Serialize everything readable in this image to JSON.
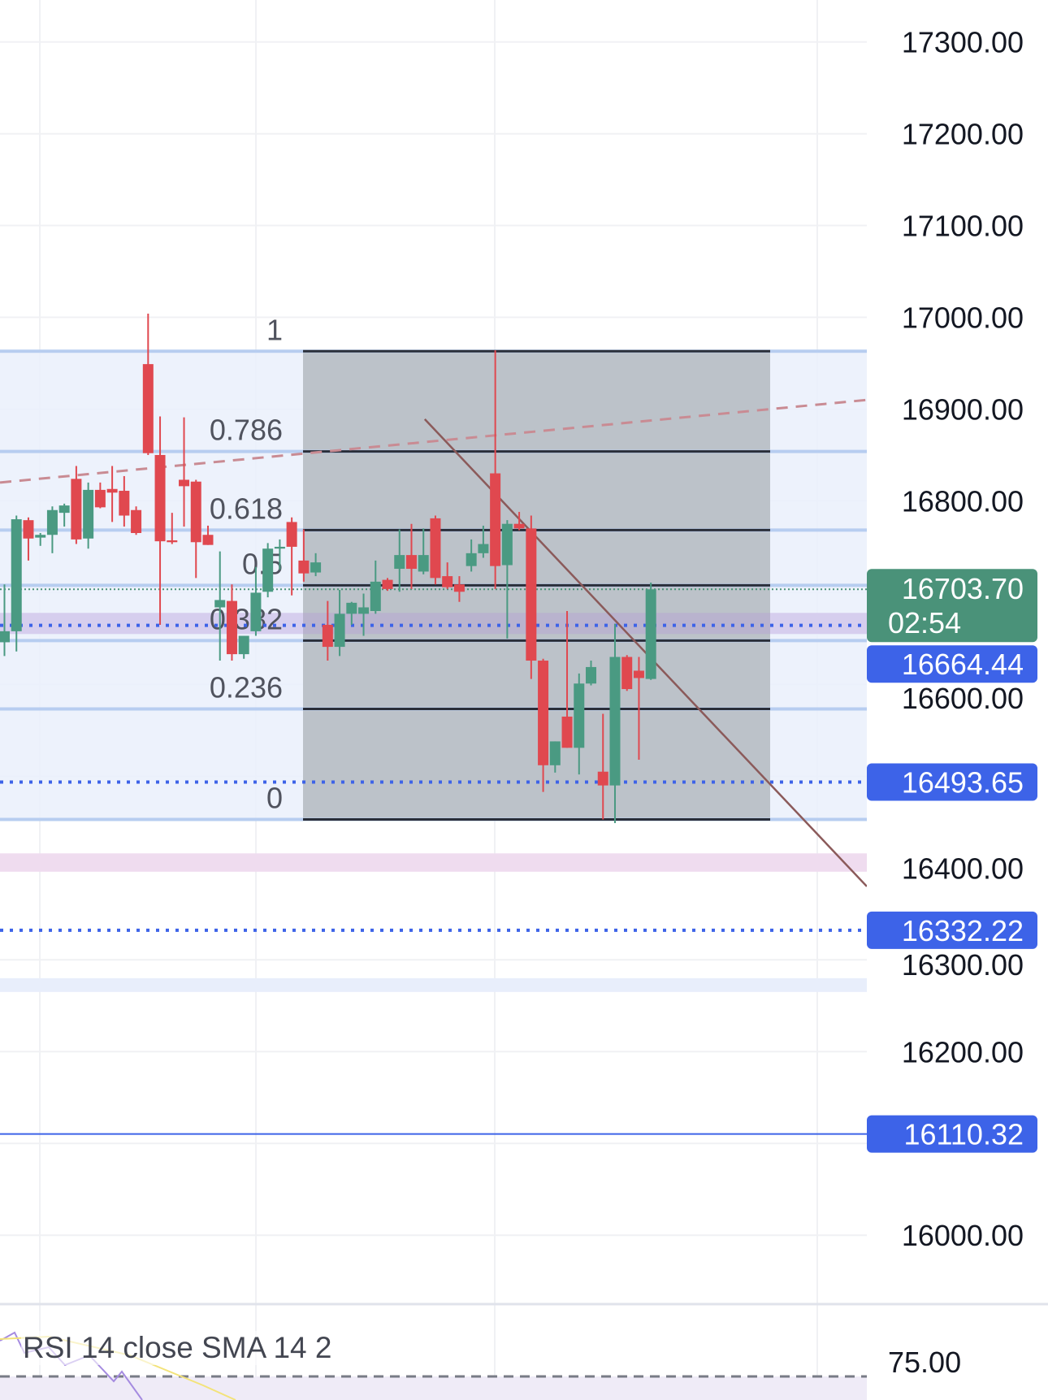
{
  "chart_data": {
    "type": "candlestick",
    "price_axis": {
      "ticks": [
        "17300.00",
        "17200.00",
        "17100.00",
        "17000.00",
        "16900.00",
        "16800.00",
        "16600.00",
        "16400.00",
        "16300.00",
        "16200.00",
        "16000.00"
      ],
      "tick_values": [
        17300,
        17200,
        17100,
        17000,
        16900,
        16800,
        16600,
        16400,
        16300,
        16200,
        16000
      ],
      "ylim": [
        15960,
        17345
      ]
    },
    "grid": true,
    "candles": [
      [
        16646,
        16709,
        16631,
        16658
      ],
      [
        16658,
        16784,
        16636,
        16780
      ],
      [
        16779,
        16782,
        16735,
        16759
      ],
      [
        16760,
        16765,
        16751,
        16763
      ],
      [
        16763,
        16794,
        16743,
        16790
      ],
      [
        16787,
        16797,
        16772,
        16795
      ],
      [
        16824,
        16838,
        16753,
        16758
      ],
      [
        16759,
        16820,
        16748,
        16812
      ],
      [
        16812,
        16820,
        16792,
        16793
      ],
      [
        16813,
        16838,
        16777,
        16809
      ],
      [
        16811,
        16827,
        16772,
        16784
      ],
      [
        16790,
        16794,
        16763,
        16765
      ],
      [
        16949,
        17004,
        16850,
        16852
      ],
      [
        16850,
        16892,
        16665,
        16756
      ],
      [
        16757,
        16787,
        16753,
        16755
      ],
      [
        16823,
        16891,
        16772,
        16816
      ],
      [
        16821,
        16823,
        16716,
        16755
      ],
      [
        16763,
        16773,
        16752,
        16752
      ],
      [
        16684,
        16745,
        16626,
        16692
      ],
      [
        16691,
        16709,
        16626,
        16633
      ],
      [
        16633,
        16653,
        16628,
        16653
      ],
      [
        16658,
        16728,
        16653,
        16700
      ],
      [
        16701,
        16754,
        16695,
        16748
      ],
      [
        16748,
        16758,
        16725,
        16750
      ],
      [
        16777,
        16782,
        16697,
        16750
      ],
      [
        16735,
        16769,
        16712,
        16721
      ],
      [
        16722,
        16743,
        16718,
        16733
      ],
      [
        16665,
        16691,
        16626,
        16641
      ],
      [
        16641,
        16703,
        16631,
        16677
      ],
      [
        16677,
        16690,
        16665,
        16689
      ],
      [
        16677,
        16699,
        16653,
        16684
      ],
      [
        16680,
        16735,
        16677,
        16712
      ],
      [
        16714,
        16716,
        16702,
        16704
      ],
      [
        16726,
        16769,
        16701,
        16741
      ],
      [
        16741,
        16775,
        16704,
        16726
      ],
      [
        16723,
        16770,
        16720,
        16741
      ],
      [
        16781,
        16784,
        16709,
        16716
      ],
      [
        16718,
        16733,
        16704,
        16706
      ],
      [
        16709,
        16718,
        16690,
        16701
      ],
      [
        16729,
        16758,
        16723,
        16743
      ],
      [
        16743,
        16773,
        16738,
        16753
      ],
      [
        16830,
        16964,
        16704,
        16729
      ],
      [
        16730,
        16779,
        16650,
        16775
      ],
      [
        16775,
        16788,
        16768,
        16770
      ],
      [
        16770,
        16784,
        16606,
        16626
      ],
      [
        16626,
        16628,
        16483,
        16512
      ],
      [
        16512,
        16538,
        16504,
        16538
      ],
      [
        16565,
        16680,
        16531,
        16531
      ],
      [
        16531,
        16612,
        16502,
        16601
      ],
      [
        16601,
        16626,
        16599,
        16619
      ],
      [
        16505,
        16568,
        16453,
        16490
      ],
      [
        16490,
        16666,
        16449,
        16630
      ],
      [
        16630,
        16632,
        16593,
        16595
      ],
      [
        16615,
        16630,
        16518,
        16607
      ],
      [
        16606,
        16711,
        16605,
        16703.7
      ]
    ],
    "candle_format": [
      "open",
      "high",
      "low",
      "close"
    ],
    "fibonacci": {
      "high": 16963,
      "low": 16453,
      "levels": [
        {
          "ratio": 1,
          "label": "1"
        },
        {
          "ratio": 0.786,
          "label": "0.786"
        },
        {
          "ratio": 0.618,
          "label": "0.618"
        },
        {
          "ratio": 0.5,
          "label": "0.5"
        },
        {
          "ratio": 0.382,
          "label": "0.382"
        },
        {
          "ratio": 0.236,
          "label": "0.236"
        },
        {
          "ratio": 0,
          "label": "0"
        }
      ]
    },
    "price_lines": [
      {
        "price": 16664.44,
        "label": "16664.44",
        "style": "dotted"
      },
      {
        "price": 16493.65,
        "label": "16493.65",
        "style": "dotted"
      },
      {
        "price": 16332.22,
        "label": "16332.22",
        "style": "dotted"
      },
      {
        "price": 16110.32,
        "label": "16110.32",
        "style": "solid"
      }
    ],
    "last_price": {
      "price": 16703.7,
      "label": "16703.70",
      "countdown": "02:54"
    },
    "zones": [
      {
        "from": 16655,
        "to": 16678,
        "color": "#d9c9ef"
      },
      {
        "from": 16396,
        "to": 16416,
        "color": "#efdcef"
      },
      {
        "from": 16265,
        "to": 16280,
        "color": "#e8eefb"
      }
    ],
    "trend_lines": [
      {
        "from": [
          0,
          16820
        ],
        "to": [
          1,
          16910
        ],
        "style": "dashed",
        "color": "#c98b93"
      },
      {
        "from": [
          0.49,
          16889
        ],
        "to": [
          1,
          16380
        ],
        "style": "solid",
        "color": "#8b5a5a"
      }
    ],
    "rsi": {
      "title": "RSI 14 close SMA 14 2",
      "level_label": "75.00",
      "level": 75
    }
  },
  "colors": {
    "up": "#4a9a82",
    "down": "#e0484f",
    "fib_line": "#b7cdf0",
    "fib_bg": "#eaf0fc",
    "fib_box": "#b9bfc6",
    "price_line": "#3d63e8",
    "last": "#4a9279",
    "grid": "#f0f1f4"
  }
}
